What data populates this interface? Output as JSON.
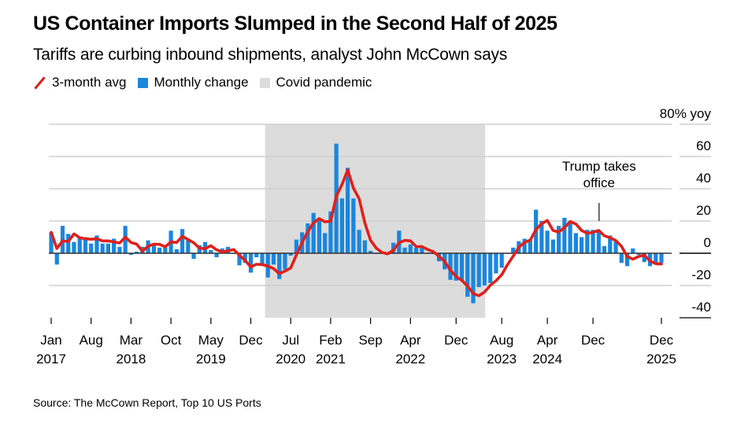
{
  "title": "US Container Imports Slumped in the Second Half of 2025",
  "subtitle": "Tariffs are curbing inbound shipments, analyst John McCown says",
  "legend": [
    {
      "label": "3-month avg",
      "kind": "line",
      "color": "#e0201b"
    },
    {
      "label": "Monthly change",
      "kind": "box",
      "color": "#1a86dd"
    },
    {
      "label": "Covid pandemic",
      "kind": "box",
      "color": "#dcdcdc"
    }
  ],
  "source": "Source: The McCown Report, Top 10 US Ports",
  "chart_data": {
    "type": "bar",
    "title": "US Container Imports Slumped in the Second Half of 2025",
    "subtitle": "Tariffs are curbing inbound shipments, analyst John McCown says",
    "xlabel": "",
    "ylabel": "% yoy",
    "y_unit_label": "80% yoy",
    "ylim": [
      -40,
      80
    ],
    "yticks": [
      80,
      60,
      40,
      20,
      0,
      -20,
      -40
    ],
    "ytick_labels": [
      "80% yoy",
      "60",
      "40",
      "20",
      "0",
      "-20",
      "-40"
    ],
    "grid": true,
    "y_axis_position": "right",
    "legend_position": "top-left",
    "start_month": "Jan 2017",
    "end_month": "Dec 2025",
    "x_ticks": [
      {
        "month_index": 0,
        "label": "Jan",
        "year": "2017"
      },
      {
        "month_index": 7,
        "label": "Aug",
        "year": ""
      },
      {
        "month_index": 14,
        "label": "Mar",
        "year": "2018"
      },
      {
        "month_index": 21,
        "label": "Oct",
        "year": ""
      },
      {
        "month_index": 28,
        "label": "May",
        "year": "2019"
      },
      {
        "month_index": 35,
        "label": "Dec",
        "year": ""
      },
      {
        "month_index": 42,
        "label": "Jul",
        "year": "2020"
      },
      {
        "month_index": 49,
        "label": "Feb",
        "year": "2021"
      },
      {
        "month_index": 56,
        "label": "Sep",
        "year": ""
      },
      {
        "month_index": 63,
        "label": "Apr",
        "year": "2022"
      },
      {
        "month_index": 71,
        "label": "Dec",
        "year": ""
      },
      {
        "month_index": 79,
        "label": "Aug",
        "year": "2023"
      },
      {
        "month_index": 87,
        "label": "Apr",
        "year": "2024"
      },
      {
        "month_index": 95,
        "label": "Dec",
        "year": ""
      },
      {
        "month_index": 107,
        "label": "Dec",
        "year": "2025"
      }
    ],
    "shaded_region": {
      "label": "Covid pandemic",
      "start_month_index": 37.5,
      "end_month_index": 76.1
    },
    "annotation": {
      "text_lines": [
        "Trump takes",
        "office"
      ],
      "month_index": 96
    },
    "series": [
      {
        "name": "Monthly change",
        "type": "bar",
        "color": "#1a86dd",
        "values": [
          13,
          -7,
          17,
          12,
          7,
          10,
          10,
          6,
          11,
          6,
          6,
          9,
          4,
          17,
          -1,
          1,
          4,
          8,
          5,
          3.5,
          3.5,
          14,
          2.5,
          15,
          8,
          -3.5,
          5,
          7,
          2,
          -2.5,
          3,
          4,
          0,
          -7.5,
          -6,
          -12,
          -2.5,
          -6.5,
          -15,
          -7,
          -16,
          -10,
          -1.5,
          8.5,
          13,
          18.5,
          25,
          21,
          12.5,
          26,
          68,
          34,
          53,
          34,
          14.5,
          8,
          1.5,
          0,
          0,
          -1,
          6.5,
          14,
          3.5,
          5.5,
          3.5,
          3.5,
          0,
          -0.5,
          -5,
          -10,
          -16.5,
          -17,
          -17,
          -27,
          -31,
          -21,
          -20,
          -18.5,
          -12.5,
          -9,
          0,
          3.5,
          7.5,
          9,
          8,
          27,
          20,
          14,
          8.5,
          17,
          22,
          20,
          12.5,
          10,
          14.5,
          14.5,
          13.5,
          4.5,
          11,
          8,
          -6,
          -8,
          3,
          -1,
          -5.5,
          -8,
          -6,
          -6
        ]
      },
      {
        "name": "3-month avg",
        "type": "line",
        "color": "#e0201b",
        "computed_as": "trailing 3-month mean of monthly change"
      }
    ]
  }
}
